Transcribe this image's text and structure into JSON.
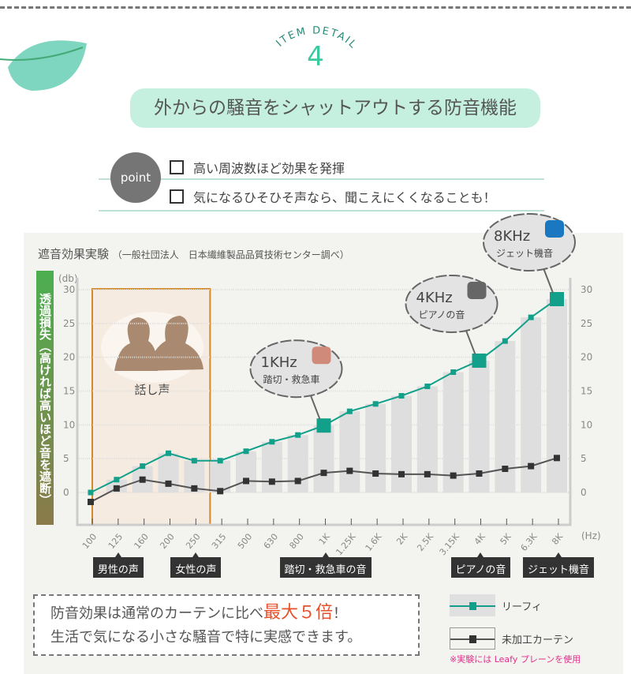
{
  "header": {
    "eyebrow": "ITEM DETAIL",
    "number": "4",
    "headline": "外からの騒音をシャットアウトする防音機能"
  },
  "points": {
    "badge": "point",
    "items": [
      "高い周波数ほど効果を発揮",
      "気になるひそひそ声なら、聞こえにくくなることも！"
    ]
  },
  "chart_data": {
    "type": "line",
    "title": "遮音効果実験",
    "subtitle": "（一般社団法人　日本繊維製品品質技術センター調べ）",
    "ylabel": "透過損失（高ければ高いほど音を遮断）",
    "yunit": "(db)",
    "xunit": "(Hz)",
    "ylim": [
      0,
      30
    ],
    "yticks": [
      "0",
      "5",
      "10",
      "15",
      "20",
      "25",
      "30"
    ],
    "categories": [
      "100",
      "125",
      "160",
      "200",
      "250",
      "315",
      "500",
      "630",
      "800",
      "1K",
      "1.25K",
      "1.6K",
      "2K",
      "2.5K",
      "3.15K",
      "4K",
      "5K",
      "6.3K",
      "8K"
    ],
    "grid": true,
    "legend_position": "bottom-right",
    "series": [
      {
        "name": "リーフィ",
        "color": "#12a08a",
        "values": [
          0,
          1.9,
          3.9,
          5.8,
          4.7,
          4.7,
          6.1,
          7.5,
          8.5,
          9.9,
          12.0,
          13.1,
          14.3,
          15.7,
          17.8,
          19.5,
          22.4,
          25.9,
          28.6
        ]
      },
      {
        "name": "未加工カーテン",
        "color": "#333333",
        "values": [
          -1.4,
          0.6,
          1.9,
          1.3,
          0.6,
          0.2,
          1.7,
          1.6,
          1.7,
          2.9,
          3.2,
          2.8,
          2.7,
          2.7,
          2.5,
          2.8,
          3.5,
          3.9,
          5.1
        ]
      }
    ],
    "highlight_region": {
      "label": "話し声",
      "from": "100",
      "to": "250"
    },
    "callouts": [
      {
        "at": "1K",
        "freq": "1KHz",
        "label": "踏切・救急車",
        "icon": "railroad-crossing-ambulance-icon"
      },
      {
        "at": "4K",
        "freq": "4KHz",
        "label": "ピアノの音",
        "icon": "piano-icon"
      },
      {
        "at": "8K",
        "freq": "8KHz",
        "label": "ジェット機音",
        "icon": "airplane-icon"
      }
    ],
    "x_tags": [
      {
        "at": "125",
        "label": "男性の声"
      },
      {
        "at": "250",
        "label": "女性の声"
      },
      {
        "at": "1K",
        "label": "踏切・救急車の音"
      },
      {
        "at": "4K",
        "label": "ピアノの音"
      },
      {
        "at": "8K",
        "label": "ジェット機音"
      }
    ]
  },
  "note": {
    "line1_pre": "防音効果は通常のカーテンに比べ",
    "line1_em": "最大５倍",
    "line1_post": "！",
    "line2": "生活で気になる小さな騒音で特に実感できます。"
  },
  "legend": {
    "footnote": "※実験には Leafy プレーンを使用"
  }
}
